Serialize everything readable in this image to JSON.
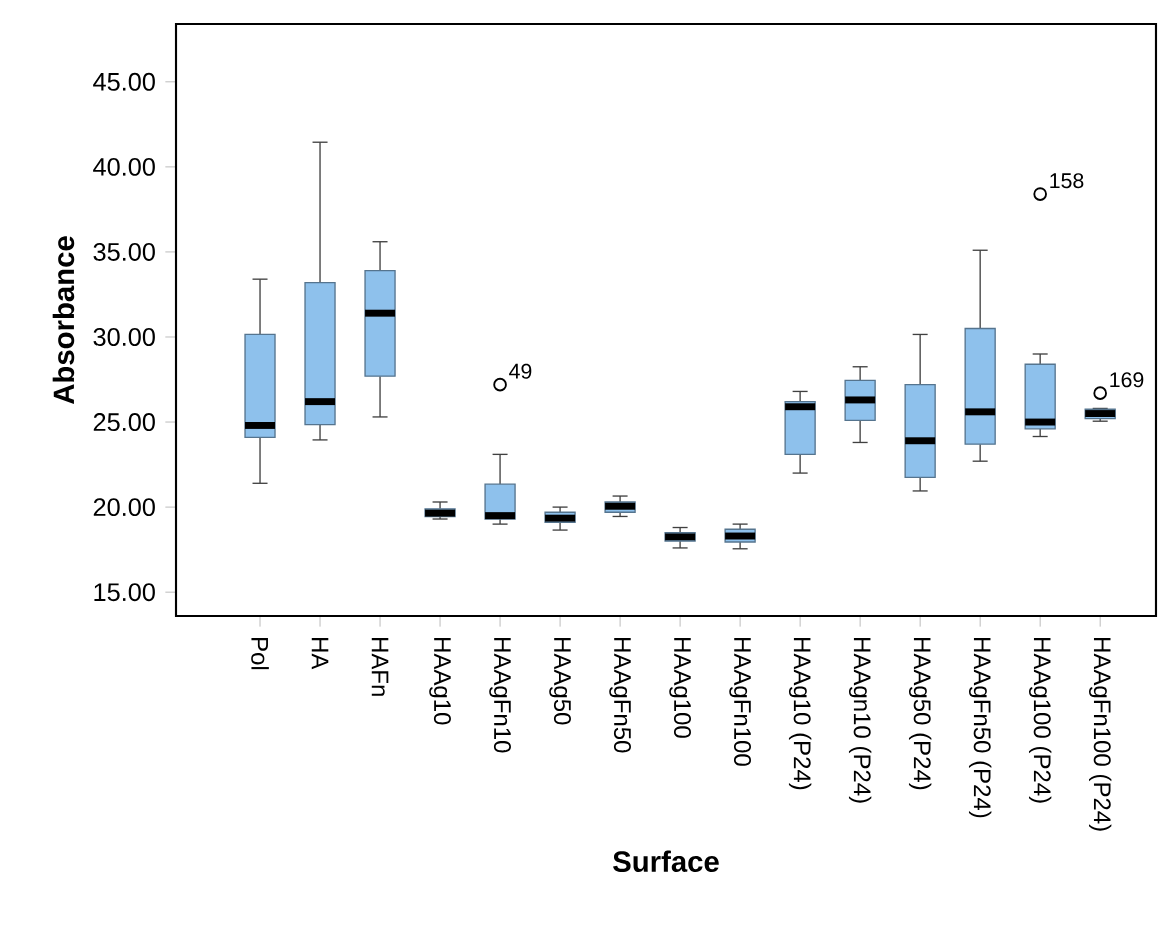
{
  "chart_data": {
    "type": "box",
    "xlabel": "Surface",
    "ylabel": "Absorbance",
    "color": "#8ec1ec",
    "categories": [
      "Pol",
      "HA",
      "HAFn",
      "HAAg10",
      "HAAgFn10",
      "HAAg50",
      "HAAgFn50",
      "HAAg100",
      "HAAgFn100",
      "HAAg10 (P24)",
      "HAAgn10 (P24)",
      "HAAg50 (P24)",
      "HAAgFn50 (P24)",
      "HAAg100 (P24)",
      "HAAgFn100 (P24)"
    ],
    "boxes": [
      {
        "low": 21.4,
        "q1": 24.1,
        "median": 24.8,
        "q3": 30.15,
        "high": 33.4
      },
      {
        "low": 23.95,
        "q1": 24.85,
        "median": 26.2,
        "q3": 33.2,
        "high": 41.45
      },
      {
        "low": 25.3,
        "q1": 27.7,
        "median": 31.4,
        "q3": 33.9,
        "high": 35.6
      },
      {
        "low": 19.3,
        "q1": 19.45,
        "median": 19.65,
        "q3": 19.9,
        "high": 20.3
      },
      {
        "low": 19.0,
        "q1": 19.3,
        "median": 19.5,
        "q3": 21.35,
        "high": 23.1,
        "outliers": [
          27.2
        ]
      },
      {
        "low": 18.65,
        "q1": 19.1,
        "median": 19.35,
        "q3": 19.7,
        "high": 20.0
      },
      {
        "low": 19.45,
        "q1": 19.7,
        "median": 20.05,
        "q3": 20.3,
        "high": 20.65
      },
      {
        "low": 17.6,
        "q1": 18.0,
        "median": 18.25,
        "q3": 18.5,
        "high": 18.8
      },
      {
        "low": 17.55,
        "q1": 17.95,
        "median": 18.3,
        "q3": 18.7,
        "high": 19.0
      },
      {
        "low": 22.0,
        "q1": 23.1,
        "median": 25.9,
        "q3": 26.2,
        "high": 26.8
      },
      {
        "low": 23.8,
        "q1": 25.1,
        "median": 26.3,
        "q3": 27.45,
        "high": 28.25
      },
      {
        "low": 20.95,
        "q1": 21.75,
        "median": 23.9,
        "q3": 27.2,
        "high": 30.15
      },
      {
        "low": 22.7,
        "q1": 23.7,
        "median": 25.6,
        "q3": 30.5,
        "high": 35.1
      },
      {
        "low": 24.15,
        "q1": 24.6,
        "median": 25.0,
        "q3": 28.4,
        "high": 29.0,
        "outliers": [
          38.4
        ]
      },
      {
        "low": 25.05,
        "q1": 25.2,
        "median": 25.5,
        "q3": 25.75,
        "high": 25.8,
        "outliers": [
          26.7
        ]
      }
    ],
    "ylim": [
      13.6,
      48.4
    ],
    "yticks": [
      {
        "value": 15,
        "label": "15.00"
      },
      {
        "value": 20,
        "label": "20.00"
      },
      {
        "value": 25,
        "label": "25.00"
      },
      {
        "value": 30,
        "label": "30.00"
      },
      {
        "value": 35,
        "label": "35.00"
      },
      {
        "value": 40,
        "label": "40.00"
      },
      {
        "value": 45,
        "label": "45.00"
      }
    ],
    "annotations": [
      "49",
      "158",
      "169"
    ]
  }
}
